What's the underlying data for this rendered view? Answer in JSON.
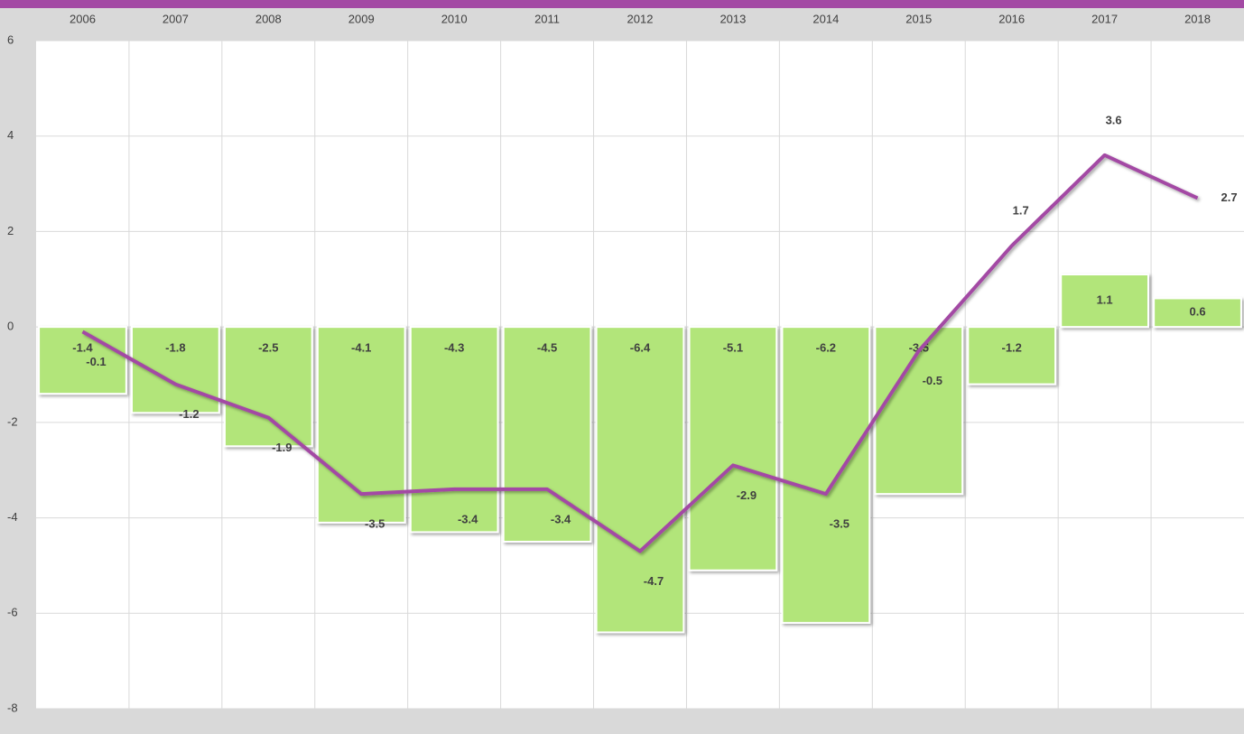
{
  "chart_data": {
    "type": "combo",
    "categories": [
      "2006",
      "2007",
      "2008",
      "2009",
      "2010",
      "2011",
      "2012",
      "2013",
      "2014",
      "2015",
      "2016",
      "2017",
      "2018"
    ],
    "series": [
      {
        "type": "bar",
        "color": "#b2e57a",
        "values": [
          -1.4,
          -1.8,
          -2.5,
          -4.1,
          -4.3,
          -4.5,
          -6.4,
          -5.1,
          -6.2,
          -3.5,
          -1.2,
          1.1,
          0.6
        ]
      },
      {
        "type": "line",
        "color": "#a349a4",
        "values": [
          -0.1,
          -1.2,
          -1.9,
          -3.5,
          -3.4,
          -3.4,
          -4.7,
          -2.9,
          -3.5,
          -0.5,
          1.7,
          3.6,
          2.7
        ]
      }
    ],
    "ylim": [
      -8,
      6
    ],
    "yticks": [
      -8,
      -6,
      -4,
      -2,
      0,
      2,
      4,
      6
    ],
    "grid": true
  }
}
